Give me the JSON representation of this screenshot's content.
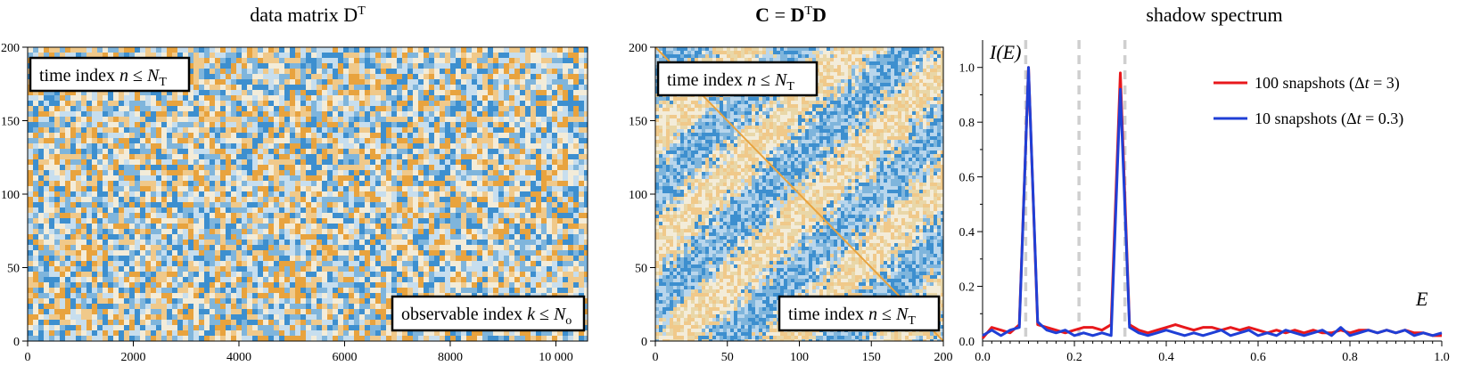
{
  "chart_data": [
    {
      "type": "heatmap",
      "title": "data matrix D",
      "title_sup": "T",
      "xlim": [
        0,
        10600
      ],
      "ylim": [
        0,
        200
      ],
      "xticks": [
        0,
        2000,
        4000,
        6000,
        8000,
        10000
      ],
      "xtick_labels": [
        "0",
        "2000",
        "4000",
        "6000",
        "8000",
        "10 000"
      ],
      "yticks": [
        0,
        50,
        100,
        150,
        200
      ],
      "colors": [
        "#3d8fcf",
        "#7fb5dc",
        "#c7deee",
        "#f3ecd9",
        "#f0c98a",
        "#e8a33e"
      ],
      "annotations": [
        {
          "text": "time index ",
          "var": "n",
          "rel": " ≤ ",
          "sym": "N",
          "sub": "T",
          "corner": "top-left"
        },
        {
          "text": "observable index ",
          "var": "k",
          "rel": " ≤ ",
          "sym": "N",
          "sub": "o",
          "corner": "bottom-right"
        }
      ]
    },
    {
      "type": "heatmap",
      "title_lhs": "C",
      "title_eq": " =  ",
      "title_rhs1": "D",
      "title_sup": "T",
      "title_rhs2": "D",
      "xlim": [
        0,
        200
      ],
      "ylim": [
        0,
        200
      ],
      "xticks": [
        0,
        50,
        100,
        150,
        200
      ],
      "yticks": [
        0,
        50,
        100,
        150,
        200
      ],
      "diagonal_color": "#e8a33e",
      "annotations": [
        {
          "text": "time index ",
          "var": "n",
          "rel": " ≤ ",
          "sym": "N",
          "sub": "T",
          "corner": "top-left"
        },
        {
          "text": "time index ",
          "var": "n",
          "rel": " ≤ ",
          "sym": "N",
          "sub": "T",
          "corner": "bottom-right"
        }
      ]
    },
    {
      "type": "line",
      "title": "shadow spectrum",
      "ylabel": "I(E)",
      "xlabel": "E",
      "xlim": [
        0,
        1
      ],
      "ylim": [
        0,
        1.1
      ],
      "xticks": [
        0.0,
        0.2,
        0.4,
        0.6,
        0.8,
        1.0
      ],
      "xtick_labels": [
        "0.0",
        "0.2",
        "0.4",
        "0.6",
        "0.8",
        "1.0"
      ],
      "yticks": [
        0.2,
        0.4,
        0.6,
        0.8,
        1.0
      ],
      "ytick_labels": [
        "0.2",
        "0.4",
        "0.6",
        "0.8",
        "1.0"
      ],
      "zero_label": "0.0",
      "vlines": [
        0.094,
        0.21,
        0.31
      ],
      "legend_position": "top-right",
      "series": [
        {
          "name": "100 snapshots (Δt = 3)",
          "name_parts": [
            "100 snapshots (",
            "Δ",
            "t",
            " = 3)"
          ],
          "color": "#e8181c",
          "x": [
            0.0,
            0.02,
            0.04,
            0.06,
            0.08,
            0.1,
            0.12,
            0.14,
            0.16,
            0.18,
            0.2,
            0.22,
            0.24,
            0.26,
            0.28,
            0.3,
            0.32,
            0.34,
            0.36,
            0.38,
            0.4,
            0.42,
            0.44,
            0.46,
            0.48,
            0.5,
            0.52,
            0.54,
            0.56,
            0.58,
            0.6,
            0.62,
            0.64,
            0.66,
            0.68,
            0.7,
            0.72,
            0.74,
            0.76,
            0.78,
            0.8,
            0.82,
            0.84,
            0.86,
            0.88,
            0.9,
            0.92,
            0.94,
            0.96,
            0.98,
            1.0
          ],
          "y": [
            0.01,
            0.05,
            0.04,
            0.03,
            0.06,
            1.0,
            0.06,
            0.05,
            0.04,
            0.03,
            0.04,
            0.05,
            0.05,
            0.04,
            0.06,
            0.98,
            0.06,
            0.04,
            0.03,
            0.04,
            0.05,
            0.06,
            0.05,
            0.04,
            0.05,
            0.05,
            0.04,
            0.05,
            0.04,
            0.05,
            0.04,
            0.03,
            0.04,
            0.03,
            0.04,
            0.03,
            0.04,
            0.03,
            0.03,
            0.04,
            0.03,
            0.04,
            0.04,
            0.03,
            0.04,
            0.03,
            0.04,
            0.03,
            0.03,
            0.02,
            0.02
          ]
        },
        {
          "name": "10 snapshots (Δt = 0.3)",
          "name_parts": [
            "10 snapshots (",
            "Δ",
            "t",
            " = 0.3)"
          ],
          "color": "#1f3fd6",
          "x": [
            0.0,
            0.02,
            0.04,
            0.06,
            0.08,
            0.1,
            0.12,
            0.14,
            0.16,
            0.18,
            0.2,
            0.22,
            0.24,
            0.26,
            0.28,
            0.3,
            0.32,
            0.34,
            0.36,
            0.38,
            0.4,
            0.42,
            0.44,
            0.46,
            0.48,
            0.5,
            0.52,
            0.54,
            0.56,
            0.58,
            0.6,
            0.62,
            0.64,
            0.66,
            0.68,
            0.7,
            0.72,
            0.74,
            0.76,
            0.78,
            0.8,
            0.82,
            0.84,
            0.86,
            0.88,
            0.9,
            0.92,
            0.94,
            0.96,
            0.98,
            1.0
          ],
          "y": [
            0.02,
            0.04,
            0.02,
            0.04,
            0.05,
            1.0,
            0.07,
            0.04,
            0.03,
            0.04,
            0.02,
            0.03,
            0.02,
            0.03,
            0.02,
            0.92,
            0.05,
            0.03,
            0.02,
            0.03,
            0.04,
            0.03,
            0.02,
            0.03,
            0.02,
            0.03,
            0.04,
            0.02,
            0.03,
            0.04,
            0.02,
            0.03,
            0.02,
            0.04,
            0.03,
            0.02,
            0.03,
            0.04,
            0.02,
            0.05,
            0.02,
            0.03,
            0.04,
            0.03,
            0.04,
            0.03,
            0.04,
            0.02,
            0.03,
            0.02,
            0.03
          ]
        }
      ]
    }
  ]
}
